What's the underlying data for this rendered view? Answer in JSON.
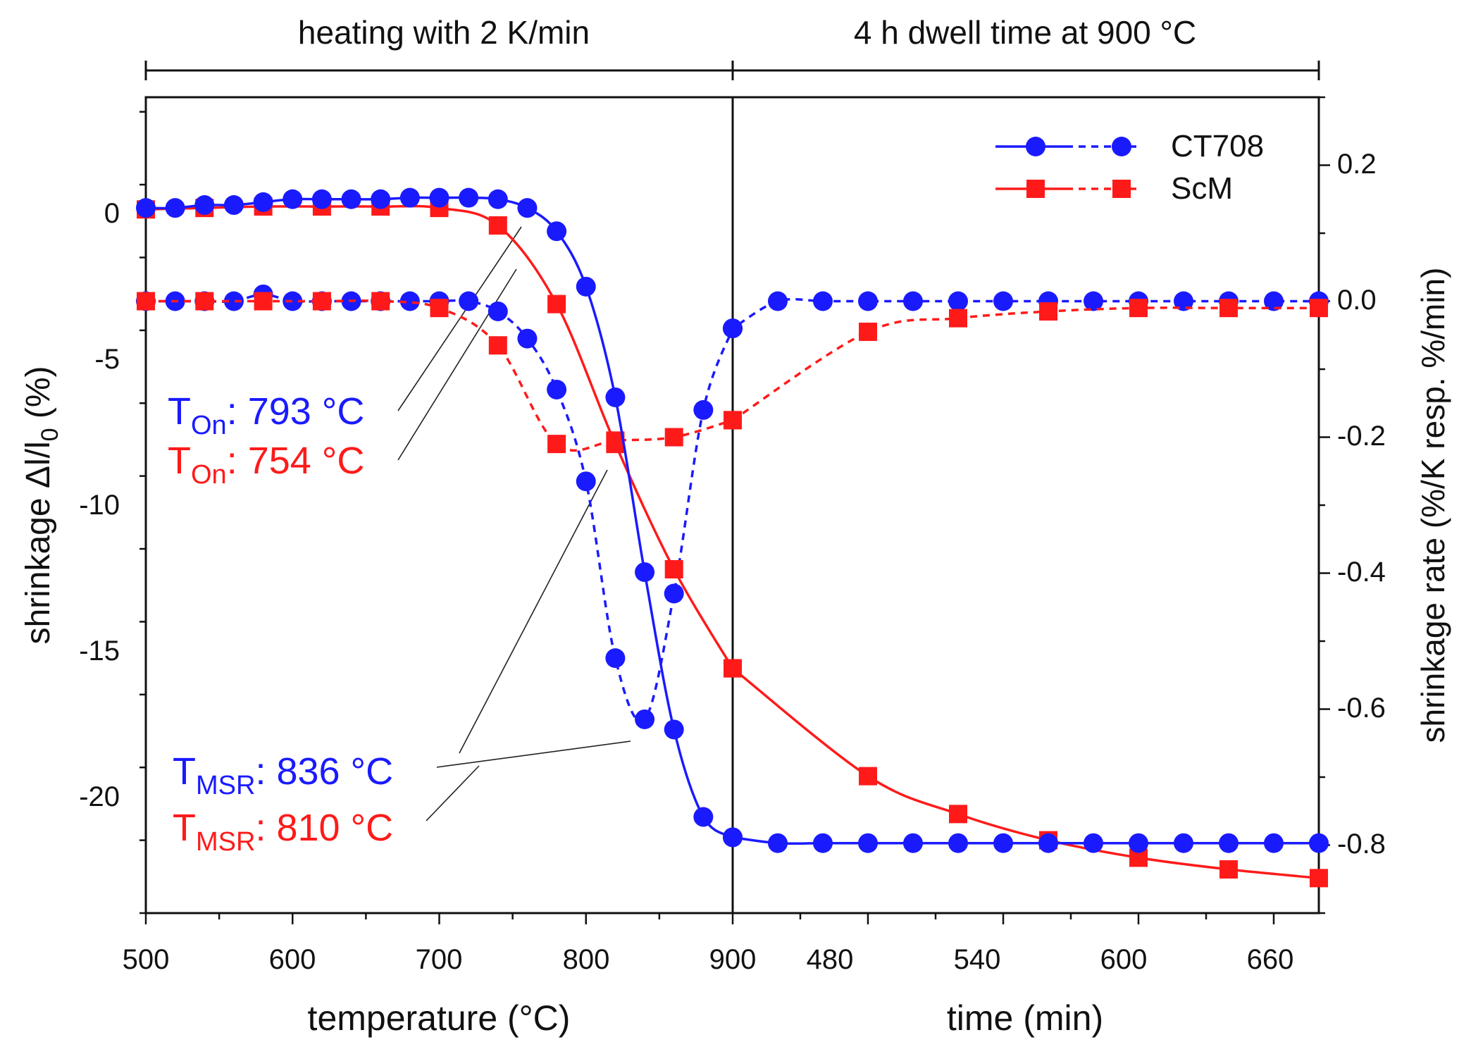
{
  "chart_data": {
    "type": "line",
    "phases": {
      "heating_label": "heating with 2 K/min",
      "dwell_label": "4 h dwell time at 900 °C"
    },
    "axes": {
      "left_ylabel_main": "shrinkage Δl/l",
      "left_ylabel_sub": "0",
      "left_ylabel_unit": " (%)",
      "right_ylabel": "shrinkage rate (%/K resp. %/min)",
      "xlabel_temperature": "temperature (°C)",
      "xlabel_time": "time (min)",
      "left_ylim": [
        -24,
        4
      ],
      "right_ylim": [
        -0.9,
        0.3
      ],
      "left_yticks": [
        "0",
        "-5",
        "-10",
        "-15",
        "-20"
      ],
      "right_yticks": [
        "0.2",
        "0.0",
        "-0.2",
        "-0.4",
        "-0.6",
        "-0.8"
      ],
      "temperature_xlim": [
        500,
        900
      ],
      "temperature_xticks": [
        "500",
        "600",
        "700",
        "800",
        "900"
      ],
      "time_xlim": [
        420,
        660
      ],
      "time_xticks": [
        "480",
        "540",
        "600",
        "660"
      ],
      "grid": false
    },
    "legend": {
      "position": "top-right",
      "entries": [
        {
          "name": "CT708",
          "color": "#1a1aff",
          "marker": "circle"
        },
        {
          "name": "ScM",
          "color": "#ff1a1a",
          "marker": "square"
        }
      ]
    },
    "annotations": {
      "blue_on_main": "T",
      "blue_on_sub": "On",
      "blue_on_value": ": 793 °C",
      "red_on_main": "T",
      "red_on_sub": "On",
      "red_on_value": ": 754 °C",
      "blue_msr_main": "T",
      "blue_msr_sub": "MSR",
      "blue_msr_value": ": 836 °C",
      "red_msr_main": "T",
      "red_msr_sub": "MSR",
      "red_msr_value": ": 810 °C"
    },
    "series": [
      {
        "name": "CT708",
        "kind": "shrinkage",
        "color": "#1a1aff",
        "marker": "circle",
        "heating": [
          [
            500,
            0.2
          ],
          [
            520,
            0.2
          ],
          [
            540,
            0.3
          ],
          [
            560,
            0.3
          ],
          [
            580,
            0.4
          ],
          [
            600,
            0.5
          ],
          [
            620,
            0.5
          ],
          [
            640,
            0.5
          ],
          [
            660,
            0.5
          ],
          [
            680,
            0.55
          ],
          [
            700,
            0.55
          ],
          [
            720,
            0.55
          ],
          [
            740,
            0.5
          ],
          [
            760,
            0.2
          ],
          [
            780,
            -0.6
          ],
          [
            800,
            -2.5
          ],
          [
            820,
            -6.3
          ],
          [
            840,
            -12.3
          ],
          [
            860,
            -17.7
          ],
          [
            880,
            -20.7
          ],
          [
            900,
            -21.4
          ]
        ],
        "dwell": [
          [
            420,
            -21.4
          ],
          [
            440,
            -21.6
          ],
          [
            460,
            -21.6
          ],
          [
            480,
            -21.6
          ],
          [
            500,
            -21.6
          ],
          [
            520,
            -21.6
          ],
          [
            540,
            -21.6
          ],
          [
            560,
            -21.6
          ],
          [
            580,
            -21.6
          ],
          [
            600,
            -21.6
          ],
          [
            620,
            -21.6
          ],
          [
            640,
            -21.6
          ],
          [
            660,
            -21.6
          ],
          [
            680,
            -21.6
          ]
        ]
      },
      {
        "name": "ScM",
        "kind": "shrinkage",
        "color": "#ff1a1a",
        "marker": "square",
        "heating": [
          [
            500,
            0.15
          ],
          [
            540,
            0.2
          ],
          [
            580,
            0.25
          ],
          [
            620,
            0.25
          ],
          [
            660,
            0.25
          ],
          [
            700,
            0.2
          ],
          [
            740,
            -0.4
          ],
          [
            780,
            -3.1
          ],
          [
            820,
            -7.9
          ],
          [
            860,
            -12.2
          ],
          [
            900,
            -15.6
          ]
        ],
        "dwell": [
          [
            420,
            -15.6
          ],
          [
            480,
            -19.3
          ],
          [
            520,
            -20.6
          ],
          [
            560,
            -21.5
          ],
          [
            600,
            -22.1
          ],
          [
            640,
            -22.5
          ],
          [
            680,
            -22.8
          ]
        ]
      },
      {
        "name": "CT708",
        "kind": "rate",
        "color": "#1a1aff",
        "marker": "circle",
        "heating": [
          [
            500,
            0.0
          ],
          [
            520,
            0.0
          ],
          [
            540,
            0.0
          ],
          [
            560,
            0.0
          ],
          [
            580,
            0.01
          ],
          [
            600,
            0.0
          ],
          [
            620,
            0.0
          ],
          [
            640,
            0.0
          ],
          [
            660,
            0.0
          ],
          [
            680,
            0.0
          ],
          [
            700,
            0.0
          ],
          [
            720,
            0.0
          ],
          [
            740,
            -0.015
          ],
          [
            760,
            -0.055
          ],
          [
            780,
            -0.13
          ],
          [
            800,
            -0.265
          ],
          [
            820,
            -0.525
          ],
          [
            840,
            -0.615
          ],
          [
            860,
            -0.43
          ],
          [
            880,
            -0.16
          ],
          [
            900,
            -0.04
          ]
        ],
        "dwell": [
          [
            420,
            -0.04
          ],
          [
            440,
            0.0
          ],
          [
            460,
            0.0
          ],
          [
            480,
            0.0
          ],
          [
            500,
            0.0
          ],
          [
            520,
            0.0
          ],
          [
            540,
            0.0
          ],
          [
            560,
            0.0
          ],
          [
            580,
            0.0
          ],
          [
            600,
            0.0
          ],
          [
            620,
            0.0
          ],
          [
            640,
            0.0
          ],
          [
            660,
            0.0
          ],
          [
            680,
            0.0
          ]
        ]
      },
      {
        "name": "ScM",
        "kind": "rate",
        "color": "#ff1a1a",
        "marker": "square",
        "heating": [
          [
            500,
            0.0
          ],
          [
            540,
            0.0
          ],
          [
            580,
            0.0
          ],
          [
            620,
            0.0
          ],
          [
            660,
            0.0
          ],
          [
            700,
            -0.01
          ],
          [
            740,
            -0.065
          ],
          [
            780,
            -0.21
          ],
          [
            820,
            -0.205
          ],
          [
            860,
            -0.2
          ],
          [
            900,
            -0.175
          ]
        ],
        "dwell": [
          [
            420,
            -0.175
          ],
          [
            480,
            -0.045
          ],
          [
            520,
            -0.025
          ],
          [
            560,
            -0.015
          ],
          [
            600,
            -0.01
          ],
          [
            640,
            -0.01
          ],
          [
            680,
            -0.01
          ]
        ]
      }
    ]
  }
}
